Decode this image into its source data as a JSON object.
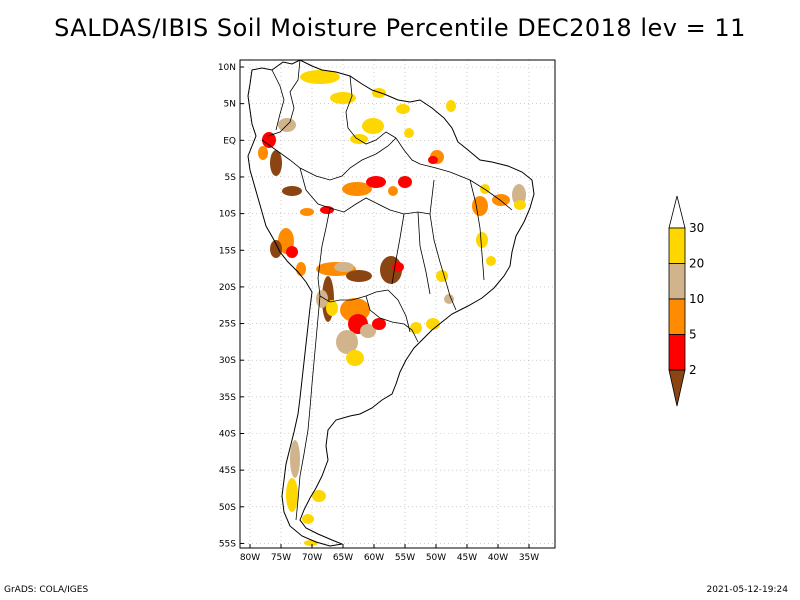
{
  "title": "SALDAS/IBIS Soil Moisture Percentile DEC2018 lev = 11",
  "footer": {
    "left": "GrADS: COLA/IGES",
    "right": "2021-05-12-19:24"
  },
  "map": {
    "region": "South America",
    "lat_range": [
      -56,
      12
    ],
    "lon_range": [
      -81,
      -33
    ],
    "grid": true,
    "lat_ticks": [
      "10N",
      "5N",
      "EQ",
      "5S",
      "10S",
      "15S",
      "20S",
      "25S",
      "30S",
      "35S",
      "40S",
      "45S",
      "50S",
      "55S"
    ],
    "lon_ticks": [
      "80W",
      "75W",
      "70W",
      "65W",
      "60W",
      "55W",
      "50W",
      "45W",
      "40W",
      "35W"
    ]
  },
  "legend": {
    "labels": [
      "2",
      "5",
      "10",
      "20",
      "30"
    ],
    "colors": [
      "#8b4513",
      "#ff0000",
      "#ff8c00",
      "#d2b48c",
      "#ffd700"
    ],
    "placement": "right"
  }
}
